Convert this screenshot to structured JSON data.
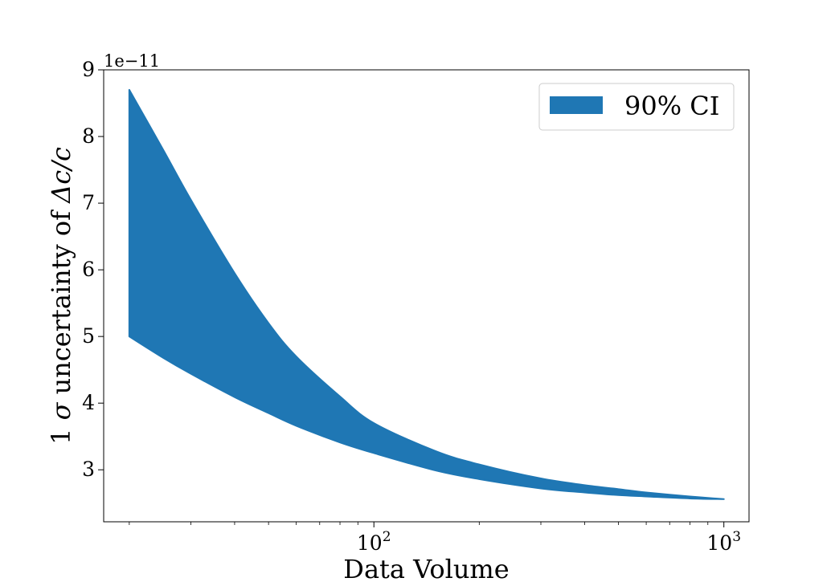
{
  "chart_data": {
    "type": "area",
    "xlabel": "Data Volume",
    "ylabel_parts": [
      "1 ",
      "σ",
      " uncertainty of ",
      "Δc/c"
    ],
    "y_offset_label": "1e−11",
    "x_scale": "log",
    "xlim": [
      16.9,
      1180
    ],
    "ylim": [
      2.22,
      9.0
    ],
    "x_ticks": [
      {
        "value": 100,
        "base": "10",
        "exp": "2"
      },
      {
        "value": 1000,
        "base": "10",
        "exp": "3"
      }
    ],
    "x_minor_ticks": [
      20,
      30,
      40,
      50,
      60,
      70,
      80,
      90,
      200,
      300,
      400,
      500,
      600,
      700,
      800,
      900
    ],
    "y_ticks": [
      {
        "value": 3,
        "label": "3"
      },
      {
        "value": 4,
        "label": "4"
      },
      {
        "value": 5,
        "label": "5"
      },
      {
        "value": 6,
        "label": "6"
      },
      {
        "value": 7,
        "label": "7"
      },
      {
        "value": 8,
        "label": "8"
      },
      {
        "value": 9,
        "label": "9"
      }
    ],
    "grid": false,
    "legend": {
      "placement": "top-right",
      "entries": [
        {
          "label": "90% CI",
          "color": "#1f77b4"
        }
      ]
    },
    "series": [
      {
        "name": "90% CI",
        "color": "#1f77b4",
        "x": [
          20,
          25,
          30,
          40,
          50,
          60,
          80,
          100,
          150,
          200,
          300,
          400,
          500,
          600,
          800,
          1000
        ],
        "upper": [
          8.7,
          7.8,
          7.05,
          5.95,
          5.2,
          4.7,
          4.1,
          3.7,
          3.28,
          3.08,
          2.87,
          2.77,
          2.71,
          2.66,
          2.6,
          2.56
        ],
        "lower": [
          5.0,
          4.68,
          4.44,
          4.09,
          3.85,
          3.66,
          3.41,
          3.25,
          2.99,
          2.86,
          2.72,
          2.66,
          2.62,
          2.6,
          2.57,
          2.56
        ]
      }
    ]
  }
}
